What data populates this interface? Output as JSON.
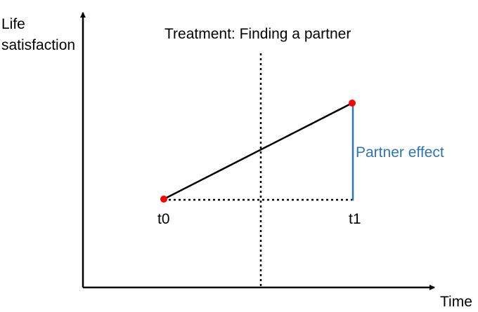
{
  "diagram": {
    "y_axis_label_line1": "Life",
    "y_axis_label_line2": "satisfaction",
    "x_axis_label": "Time",
    "treatment_label": "Treatment: Finding a partner",
    "t0_label": "t0",
    "t1_label": "t1",
    "effect_label": "Partner effect",
    "colors": {
      "axes": "#000000",
      "points": "#ff0000",
      "effect": "#2e75b6",
      "text": "#000000"
    }
  }
}
